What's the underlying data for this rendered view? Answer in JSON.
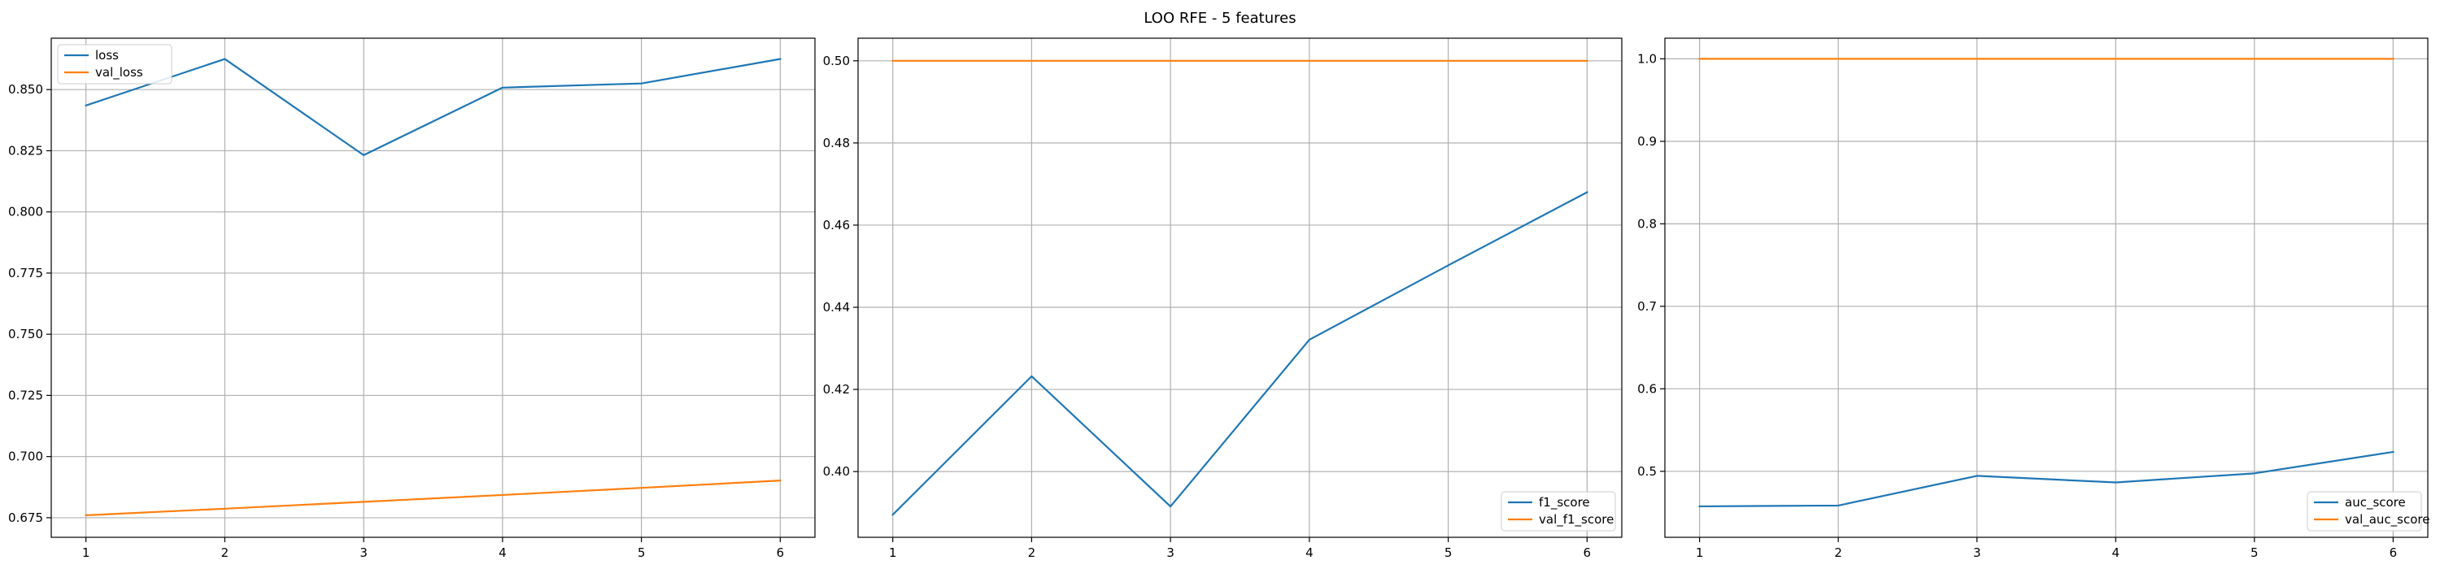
{
  "figure": {
    "suptitle": "LOO RFE - 5 features"
  },
  "colors": {
    "series_1": "#1f77b4",
    "series_2": "#ff7f0e",
    "grid": "#b0b0b0",
    "axes": "#000000"
  },
  "chart_data": [
    {
      "type": "line",
      "x": [
        1,
        2,
        3,
        4,
        5,
        6
      ],
      "xticks": [
        "1",
        "2",
        "3",
        "4",
        "5",
        "6"
      ],
      "xlim": [
        0.75,
        6.25
      ],
      "ylim": [
        0.667,
        0.871
      ],
      "yticks": [
        "0.675",
        "0.700",
        "0.725",
        "0.750",
        "0.775",
        "0.800",
        "0.825",
        "0.850"
      ],
      "grid": true,
      "legend_position": "upper-left",
      "series": [
        {
          "name": "loss",
          "color": "#1f77b4",
          "values": [
            0.8435,
            0.8625,
            0.8232,
            0.8508,
            0.8525,
            0.8625
          ]
        },
        {
          "name": "val_loss",
          "color": "#ff7f0e",
          "values": [
            0.676,
            0.6787,
            0.6815,
            0.6843,
            0.6872,
            0.6902
          ]
        }
      ]
    },
    {
      "type": "line",
      "x": [
        1,
        2,
        3,
        4,
        5,
        6
      ],
      "xticks": [
        "1",
        "2",
        "3",
        "4",
        "5",
        "6"
      ],
      "xlim": [
        0.75,
        6.25
      ],
      "ylim": [
        0.384,
        0.5055
      ],
      "yticks": [
        "0.40",
        "0.42",
        "0.44",
        "0.46",
        "0.48",
        "0.50"
      ],
      "grid": true,
      "legend_position": "lower-right",
      "series": [
        {
          "name": "f1_score",
          "color": "#1f77b4",
          "values": [
            0.3895,
            0.4232,
            0.3915,
            0.4321,
            0.4502,
            0.468
          ]
        },
        {
          "name": "val_f1_score",
          "color": "#ff7f0e",
          "values": [
            0.5,
            0.5,
            0.5,
            0.5,
            0.5,
            0.5
          ]
        }
      ]
    },
    {
      "type": "line",
      "x": [
        1,
        2,
        3,
        4,
        5,
        6
      ],
      "xticks": [
        "1",
        "2",
        "3",
        "4",
        "5",
        "6"
      ],
      "xlim": [
        0.75,
        6.25
      ],
      "ylim": [
        0.42,
        1.025
      ],
      "yticks": [
        "0.5",
        "0.6",
        "0.7",
        "0.8",
        "0.9",
        "1.0"
      ],
      "grid": true,
      "legend_position": "lower-right",
      "series": [
        {
          "name": "auc_score",
          "color": "#1f77b4",
          "values": [
            0.4575,
            0.4585,
            0.4945,
            0.4865,
            0.4975,
            0.5235
          ]
        },
        {
          "name": "val_auc_score",
          "color": "#ff7f0e",
          "values": [
            1.0,
            1.0,
            1.0,
            1.0,
            1.0,
            1.0
          ]
        }
      ]
    }
  ]
}
